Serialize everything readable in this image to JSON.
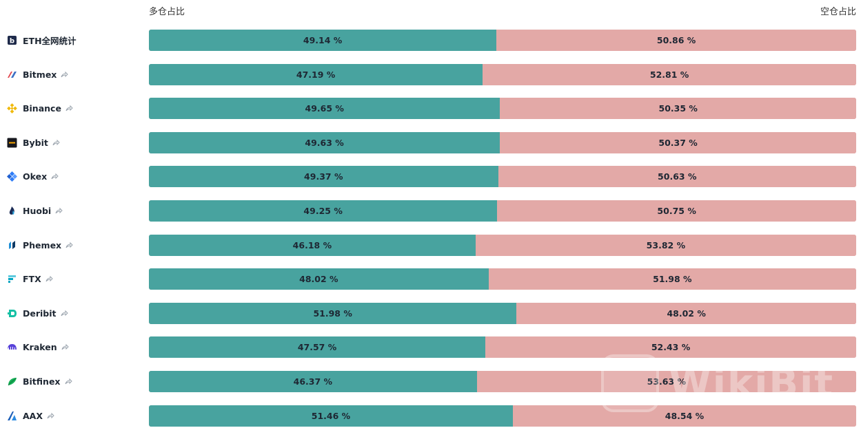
{
  "header": {
    "long_label": "多仓占比",
    "short_label": "空仓占比"
  },
  "colors": {
    "long": "#48a39f",
    "short": "#e3a9a7"
  },
  "watermark": {
    "text": "WikiBit"
  },
  "rows": [
    {
      "name": "ETH全网统计",
      "icon": "eth-aggregate-icon",
      "share": false,
      "long": 49.14,
      "short": 50.86,
      "long_text": "49.14 %",
      "short_text": "50.86 %"
    },
    {
      "name": "Bitmex",
      "icon": "bitmex-icon",
      "share": true,
      "long": 47.19,
      "short": 52.81,
      "long_text": "47.19 %",
      "short_text": "52.81 %"
    },
    {
      "name": "Binance",
      "icon": "binance-icon",
      "share": true,
      "long": 49.65,
      "short": 50.35,
      "long_text": "49.65 %",
      "short_text": "50.35 %"
    },
    {
      "name": "Bybit",
      "icon": "bybit-icon",
      "share": true,
      "long": 49.63,
      "short": 50.37,
      "long_text": "49.63 %",
      "short_text": "50.37 %"
    },
    {
      "name": "Okex",
      "icon": "okex-icon",
      "share": true,
      "long": 49.37,
      "short": 50.63,
      "long_text": "49.37 %",
      "short_text": "50.63 %"
    },
    {
      "name": "Huobi",
      "icon": "huobi-icon",
      "share": true,
      "long": 49.25,
      "short": 50.75,
      "long_text": "49.25 %",
      "short_text": "50.75 %"
    },
    {
      "name": "Phemex",
      "icon": "phemex-icon",
      "share": true,
      "long": 46.18,
      "short": 53.82,
      "long_text": "46.18 %",
      "short_text": "53.82 %"
    },
    {
      "name": "FTX",
      "icon": "ftx-icon",
      "share": true,
      "long": 48.02,
      "short": 51.98,
      "long_text": "48.02 %",
      "short_text": "51.98 %"
    },
    {
      "name": "Deribit",
      "icon": "deribit-icon",
      "share": true,
      "long": 51.98,
      "short": 48.02,
      "long_text": "51.98 %",
      "short_text": "48.02 %"
    },
    {
      "name": "Kraken",
      "icon": "kraken-icon",
      "share": true,
      "long": 47.57,
      "short": 52.43,
      "long_text": "47.57 %",
      "short_text": "52.43 %"
    },
    {
      "name": "Bitfinex",
      "icon": "bitfinex-icon",
      "share": true,
      "long": 46.37,
      "short": 53.63,
      "long_text": "46.37 %",
      "short_text": "53.63 %"
    },
    {
      "name": "AAX",
      "icon": "aax-icon",
      "share": true,
      "long": 51.46,
      "short": 48.54,
      "long_text": "51.46 %",
      "short_text": "48.54 %"
    }
  ]
}
